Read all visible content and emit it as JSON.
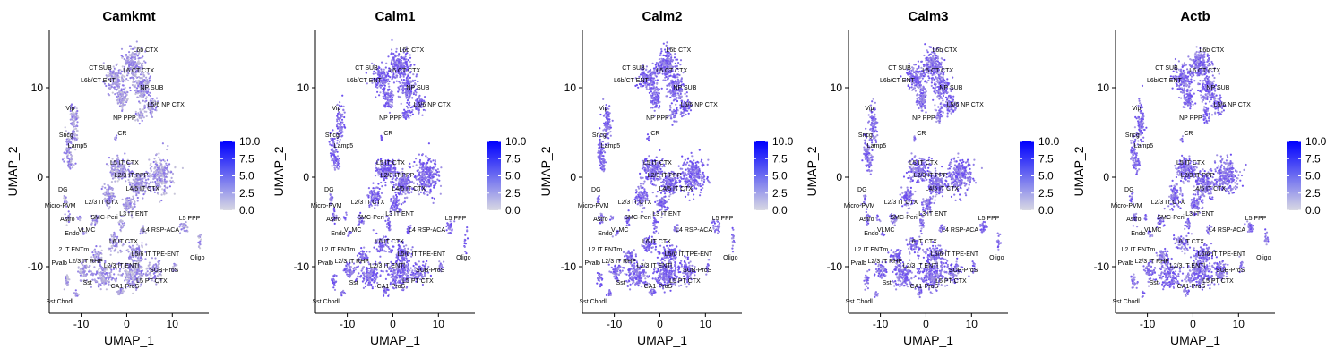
{
  "chart_data": {
    "type": "scatter",
    "xlabel": "UMAP_1",
    "ylabel": "UMAP_2",
    "xlim": [
      -17,
      18
    ],
    "ylim": [
      -15.2,
      16.5
    ],
    "x_ticks": [
      -10,
      0,
      10
    ],
    "x_tick_labels": [
      "-10",
      "0",
      "10"
    ],
    "y_ticks": [
      -10,
      0,
      10
    ],
    "y_tick_labels": [
      "-10",
      "0",
      "10"
    ],
    "grid": false,
    "color_scale": {
      "min": 0,
      "max": 10,
      "ticks": [
        0,
        2.5,
        5,
        7.5,
        10
      ],
      "tick_labels": [
        "0.0",
        "2.5",
        "5.0",
        "7.5",
        "10.0"
      ],
      "low_color": "#d9d9e3",
      "high_color": "#0000ff"
    },
    "panels": [
      {
        "title": "Camkmt",
        "expression": 0.35
      },
      {
        "title": "Calm1",
        "expression": 0.75
      },
      {
        "title": "Calm2",
        "expression": 0.75
      },
      {
        "title": "Calm3",
        "expression": 0.7
      },
      {
        "title": "Actb",
        "expression": 0.7
      }
    ],
    "clusters": [
      {
        "label": "L6b CTX",
        "x": 4.1,
        "y": 14.0
      },
      {
        "label": "CT SUB",
        "x": -5.8,
        "y": 12.0
      },
      {
        "label": "L6 CT CTX",
        "x": 2.6,
        "y": 11.7
      },
      {
        "label": "L6b/CT ENT",
        "x": -6.3,
        "y": 10.6
      },
      {
        "label": "NP SUB",
        "x": 5.5,
        "y": 9.8
      },
      {
        "label": "L5/6 NP CTX",
        "x": 8.6,
        "y": 7.9
      },
      {
        "label": "NP PPP",
        "x": -0.5,
        "y": 6.4
      },
      {
        "label": "Vip",
        "x": -12.4,
        "y": 7.5
      },
      {
        "label": "Sncg",
        "x": -13.3,
        "y": 4.5
      },
      {
        "label": "Lamp5",
        "x": -10.8,
        "y": 3.3
      },
      {
        "label": "CR",
        "x": -1.0,
        "y": 4.7
      },
      {
        "label": "L5 IT CTX",
        "x": -0.5,
        "y": 1.4
      },
      {
        "label": "L2/3 IT PPP",
        "x": 1.0,
        "y": 0.0
      },
      {
        "label": "L4/5 IT CTX",
        "x": 3.5,
        "y": -1.5
      },
      {
        "label": "L2/3 IT CTX",
        "x": -5.5,
        "y": -3.0
      },
      {
        "label": "DG",
        "x": -14.0,
        "y": -1.6
      },
      {
        "label": "Micro-PVM",
        "x": -14.6,
        "y": -3.4
      },
      {
        "label": "Astro",
        "x": -13.0,
        "y": -4.9
      },
      {
        "label": "SMC-Peri",
        "x": -4.9,
        "y": -4.7
      },
      {
        "label": "L3 IT ENT",
        "x": 1.5,
        "y": -4.3
      },
      {
        "label": "L5 PPP",
        "x": 13.8,
        "y": -4.8
      },
      {
        "label": "Endo",
        "x": -12.0,
        "y": -6.5
      },
      {
        "label": "VLMC",
        "x": -8.8,
        "y": -6.1
      },
      {
        "label": "L4 RSP-ACA",
        "x": 7.5,
        "y": -6.1
      },
      {
        "label": "L6 IT CTX",
        "x": -0.7,
        "y": -7.4
      },
      {
        "label": "L2 IT ENTm",
        "x": -12.0,
        "y": -8.3
      },
      {
        "label": "L5/6 IT TPE-ENT",
        "x": 6.3,
        "y": -8.8
      },
      {
        "label": "Oligo",
        "x": 15.5,
        "y": -9.2
      },
      {
        "label": "L2/3 IT RHP",
        "x": -9.0,
        "y": -9.6
      },
      {
        "label": "Pvalb",
        "x": -14.8,
        "y": -9.8
      },
      {
        "label": "L2/3 IT ENTl",
        "x": -1.2,
        "y": -10.1
      },
      {
        "label": "SUB-ProS",
        "x": 8.2,
        "y": -10.6
      },
      {
        "label": "Sst",
        "x": -8.6,
        "y": -12.0
      },
      {
        "label": "L5 PT CTX",
        "x": 5.5,
        "y": -11.8
      },
      {
        "label": "CA1-ProS",
        "x": -0.4,
        "y": -12.4
      },
      {
        "label": "Sst Chodl",
        "x": -14.7,
        "y": -14.1
      }
    ],
    "bulk_colors": {
      "low": "#c9c7d9",
      "high": "#6a4cf0"
    }
  }
}
